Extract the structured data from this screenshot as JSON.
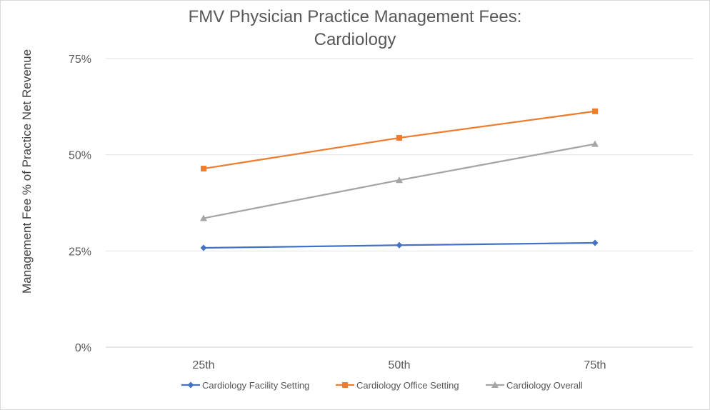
{
  "chart_data": {
    "type": "line",
    "title_lines": [
      "FMV Physician Practice Management Fees:",
      "Cardiology"
    ],
    "xlabel": "",
    "ylabel": "Management Fee % of Practice Net Revenue",
    "categories": [
      "25th",
      "50th",
      "75th"
    ],
    "y_ticks": [
      "0%",
      "25%",
      "50%",
      "75%"
    ],
    "ylim": [
      0,
      75
    ],
    "grid": true,
    "legend_position": "bottom",
    "series": [
      {
        "name": "Cardiology Facility Setting",
        "values": [
          25.8,
          26.5,
          27.1
        ],
        "color": "#4472c4",
        "marker": "diamond"
      },
      {
        "name": "Cardiology Office Setting",
        "values": [
          46.4,
          54.4,
          61.3
        ],
        "color": "#ed7d31",
        "marker": "square"
      },
      {
        "name": "Cardiology Overall",
        "values": [
          33.5,
          43.4,
          52.8
        ],
        "color": "#a5a5a5",
        "marker": "triangle"
      }
    ]
  }
}
